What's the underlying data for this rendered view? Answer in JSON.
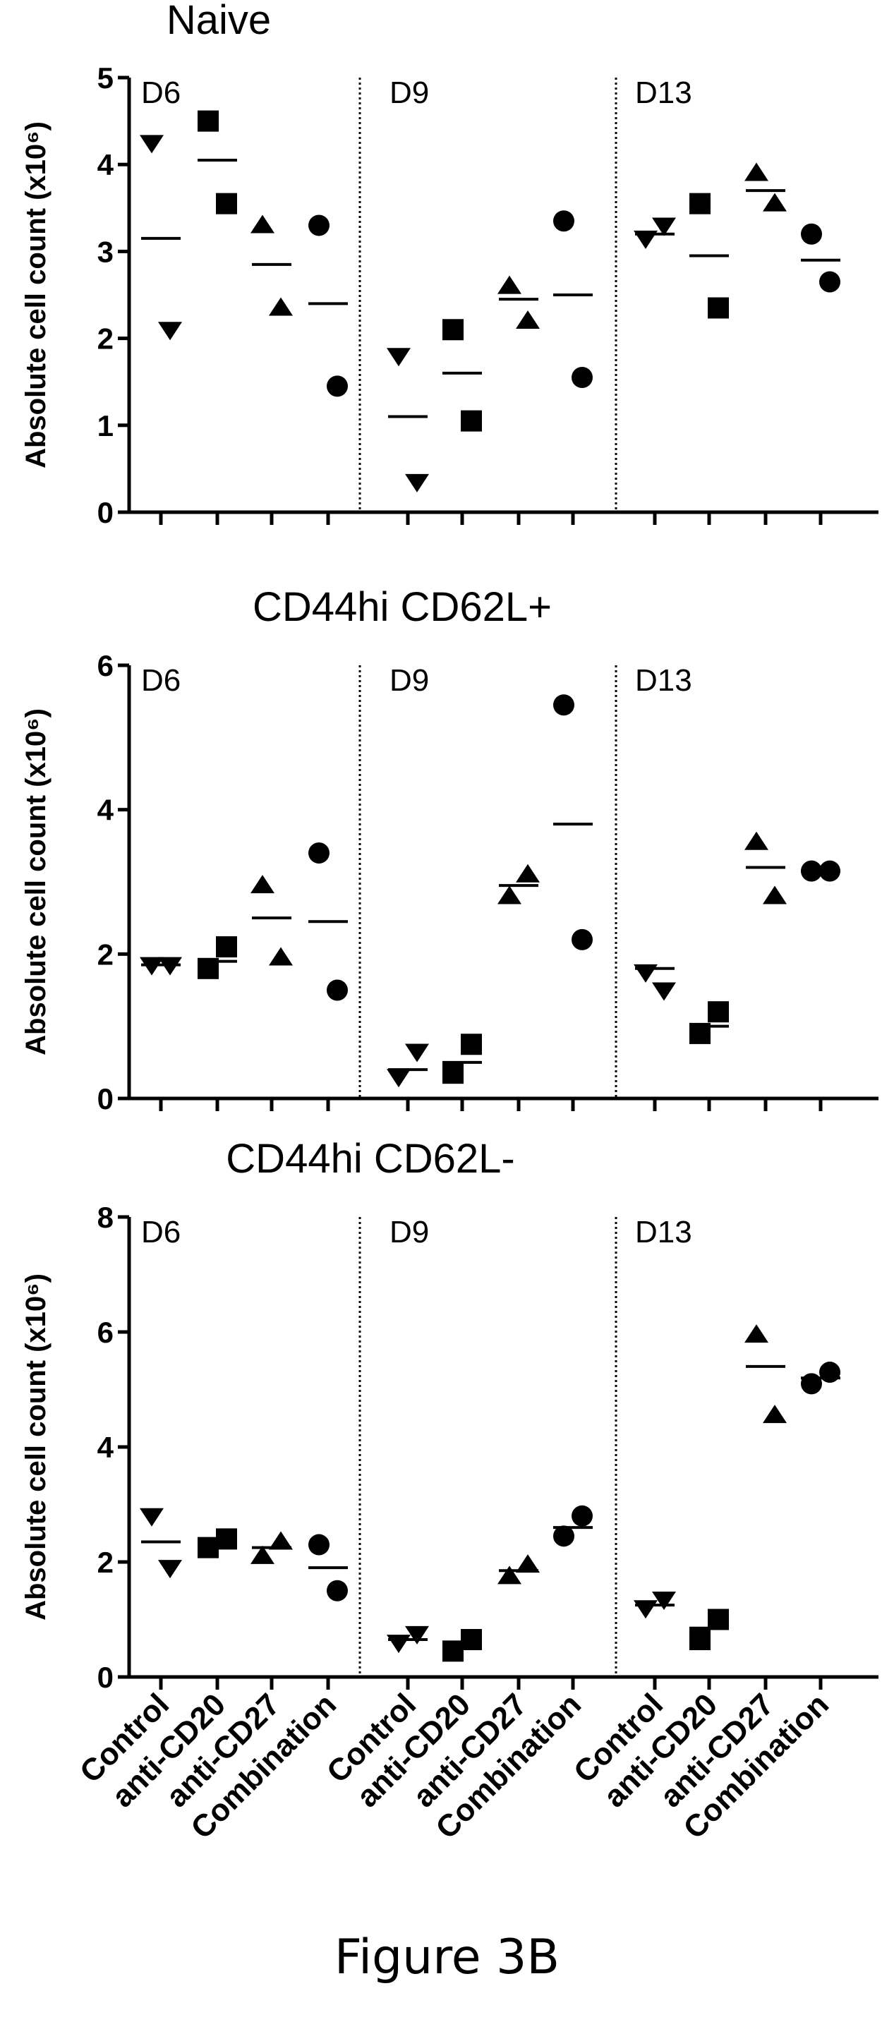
{
  "caption": "Figure 3B",
  "chart_data": [
    {
      "type": "scatter",
      "title": "Naive",
      "ylabel": "Absolute cell count (x10⁶)",
      "ylim": [
        0,
        5
      ],
      "yticks": [
        0,
        1,
        2,
        3,
        4,
        5
      ],
      "days": [
        "D6",
        "D9",
        "D13"
      ],
      "categories": [
        "Control",
        "anti-CD20",
        "anti-CD27",
        "Combination"
      ],
      "markers": [
        "triangle-down",
        "square",
        "triangle-up",
        "circle"
      ],
      "groups": [
        {
          "day": "D6",
          "points": [
            [
              4.25,
              2.1
            ],
            [
              4.5,
              3.55
            ],
            [
              3.3,
              2.35
            ],
            [
              3.3,
              1.45
            ]
          ],
          "means": [
            3.15,
            4.05,
            2.85,
            2.4
          ]
        },
        {
          "day": "D9",
          "points": [
            [
              1.8,
              0.35
            ],
            [
              2.1,
              1.05
            ],
            [
              2.6,
              2.2
            ],
            [
              3.35,
              1.55
            ]
          ],
          "means": [
            1.1,
            1.6,
            2.45,
            2.5
          ]
        },
        {
          "day": "D13",
          "points": [
            [
              3.15,
              3.3
            ],
            [
              3.55,
              2.35
            ],
            [
              3.9,
              3.55
            ],
            [
              3.2,
              2.65
            ]
          ],
          "means": [
            3.2,
            2.95,
            3.7,
            2.9
          ]
        }
      ]
    },
    {
      "type": "scatter",
      "title": "CD44hi CD62L+",
      "ylabel": "Absolute cell count (x10⁶)",
      "ylim": [
        0,
        6
      ],
      "yticks": [
        0,
        2,
        4,
        6
      ],
      "days": [
        "D6",
        "D9",
        "D13"
      ],
      "categories": [
        "Control",
        "anti-CD20",
        "anti-CD27",
        "Combination"
      ],
      "markers": [
        "triangle-down",
        "square",
        "triangle-up",
        "circle"
      ],
      "groups": [
        {
          "day": "D6",
          "points": [
            [
              1.85,
              1.85
            ],
            [
              1.8,
              2.1
            ],
            [
              2.95,
              1.95
            ],
            [
              3.4,
              1.5
            ]
          ],
          "means": [
            1.85,
            1.9,
            2.5,
            2.45
          ]
        },
        {
          "day": "D9",
          "points": [
            [
              0.3,
              0.65
            ],
            [
              0.35,
              0.75
            ],
            [
              2.8,
              3.1
            ],
            [
              5.45,
              2.2
            ]
          ],
          "means": [
            0.4,
            0.5,
            2.95,
            3.8
          ]
        },
        {
          "day": "D13",
          "points": [
            [
              1.75,
              1.5
            ],
            [
              0.9,
              1.2
            ],
            [
              3.55,
              2.8
            ],
            [
              3.15,
              3.15
            ]
          ],
          "means": [
            1.8,
            1.0,
            3.2,
            3.15
          ]
        }
      ]
    },
    {
      "type": "scatter",
      "title": "CD44hi CD62L-",
      "ylabel": "Absolute cell count (x10⁶)",
      "ylim": [
        0,
        8
      ],
      "yticks": [
        0,
        2,
        4,
        6,
        8
      ],
      "days": [
        "D6",
        "D9",
        "D13"
      ],
      "categories": [
        "Control",
        "anti-CD20",
        "anti-CD27",
        "Combination"
      ],
      "markers": [
        "triangle-down",
        "square",
        "triangle-up",
        "circle"
      ],
      "groups": [
        {
          "day": "D6",
          "points": [
            [
              2.8,
              1.9
            ],
            [
              2.25,
              2.4
            ],
            [
              2.1,
              2.35
            ],
            [
              2.3,
              1.5
            ]
          ],
          "means": [
            2.35,
            2.3,
            2.25,
            1.9
          ]
        },
        {
          "day": "D9",
          "points": [
            [
              0.6,
              0.75
            ],
            [
              0.45,
              0.65
            ],
            [
              1.75,
              1.95
            ],
            [
              2.45,
              2.8
            ]
          ],
          "means": [
            0.65,
            0.55,
            1.85,
            2.6
          ]
        },
        {
          "day": "D13",
          "points": [
            [
              1.2,
              1.35
            ],
            [
              0.65,
              1.0
            ],
            [
              5.95,
              4.55
            ],
            [
              5.1,
              5.3
            ]
          ],
          "means": [
            1.25,
            0.85,
            5.4,
            5.2
          ]
        }
      ]
    }
  ]
}
